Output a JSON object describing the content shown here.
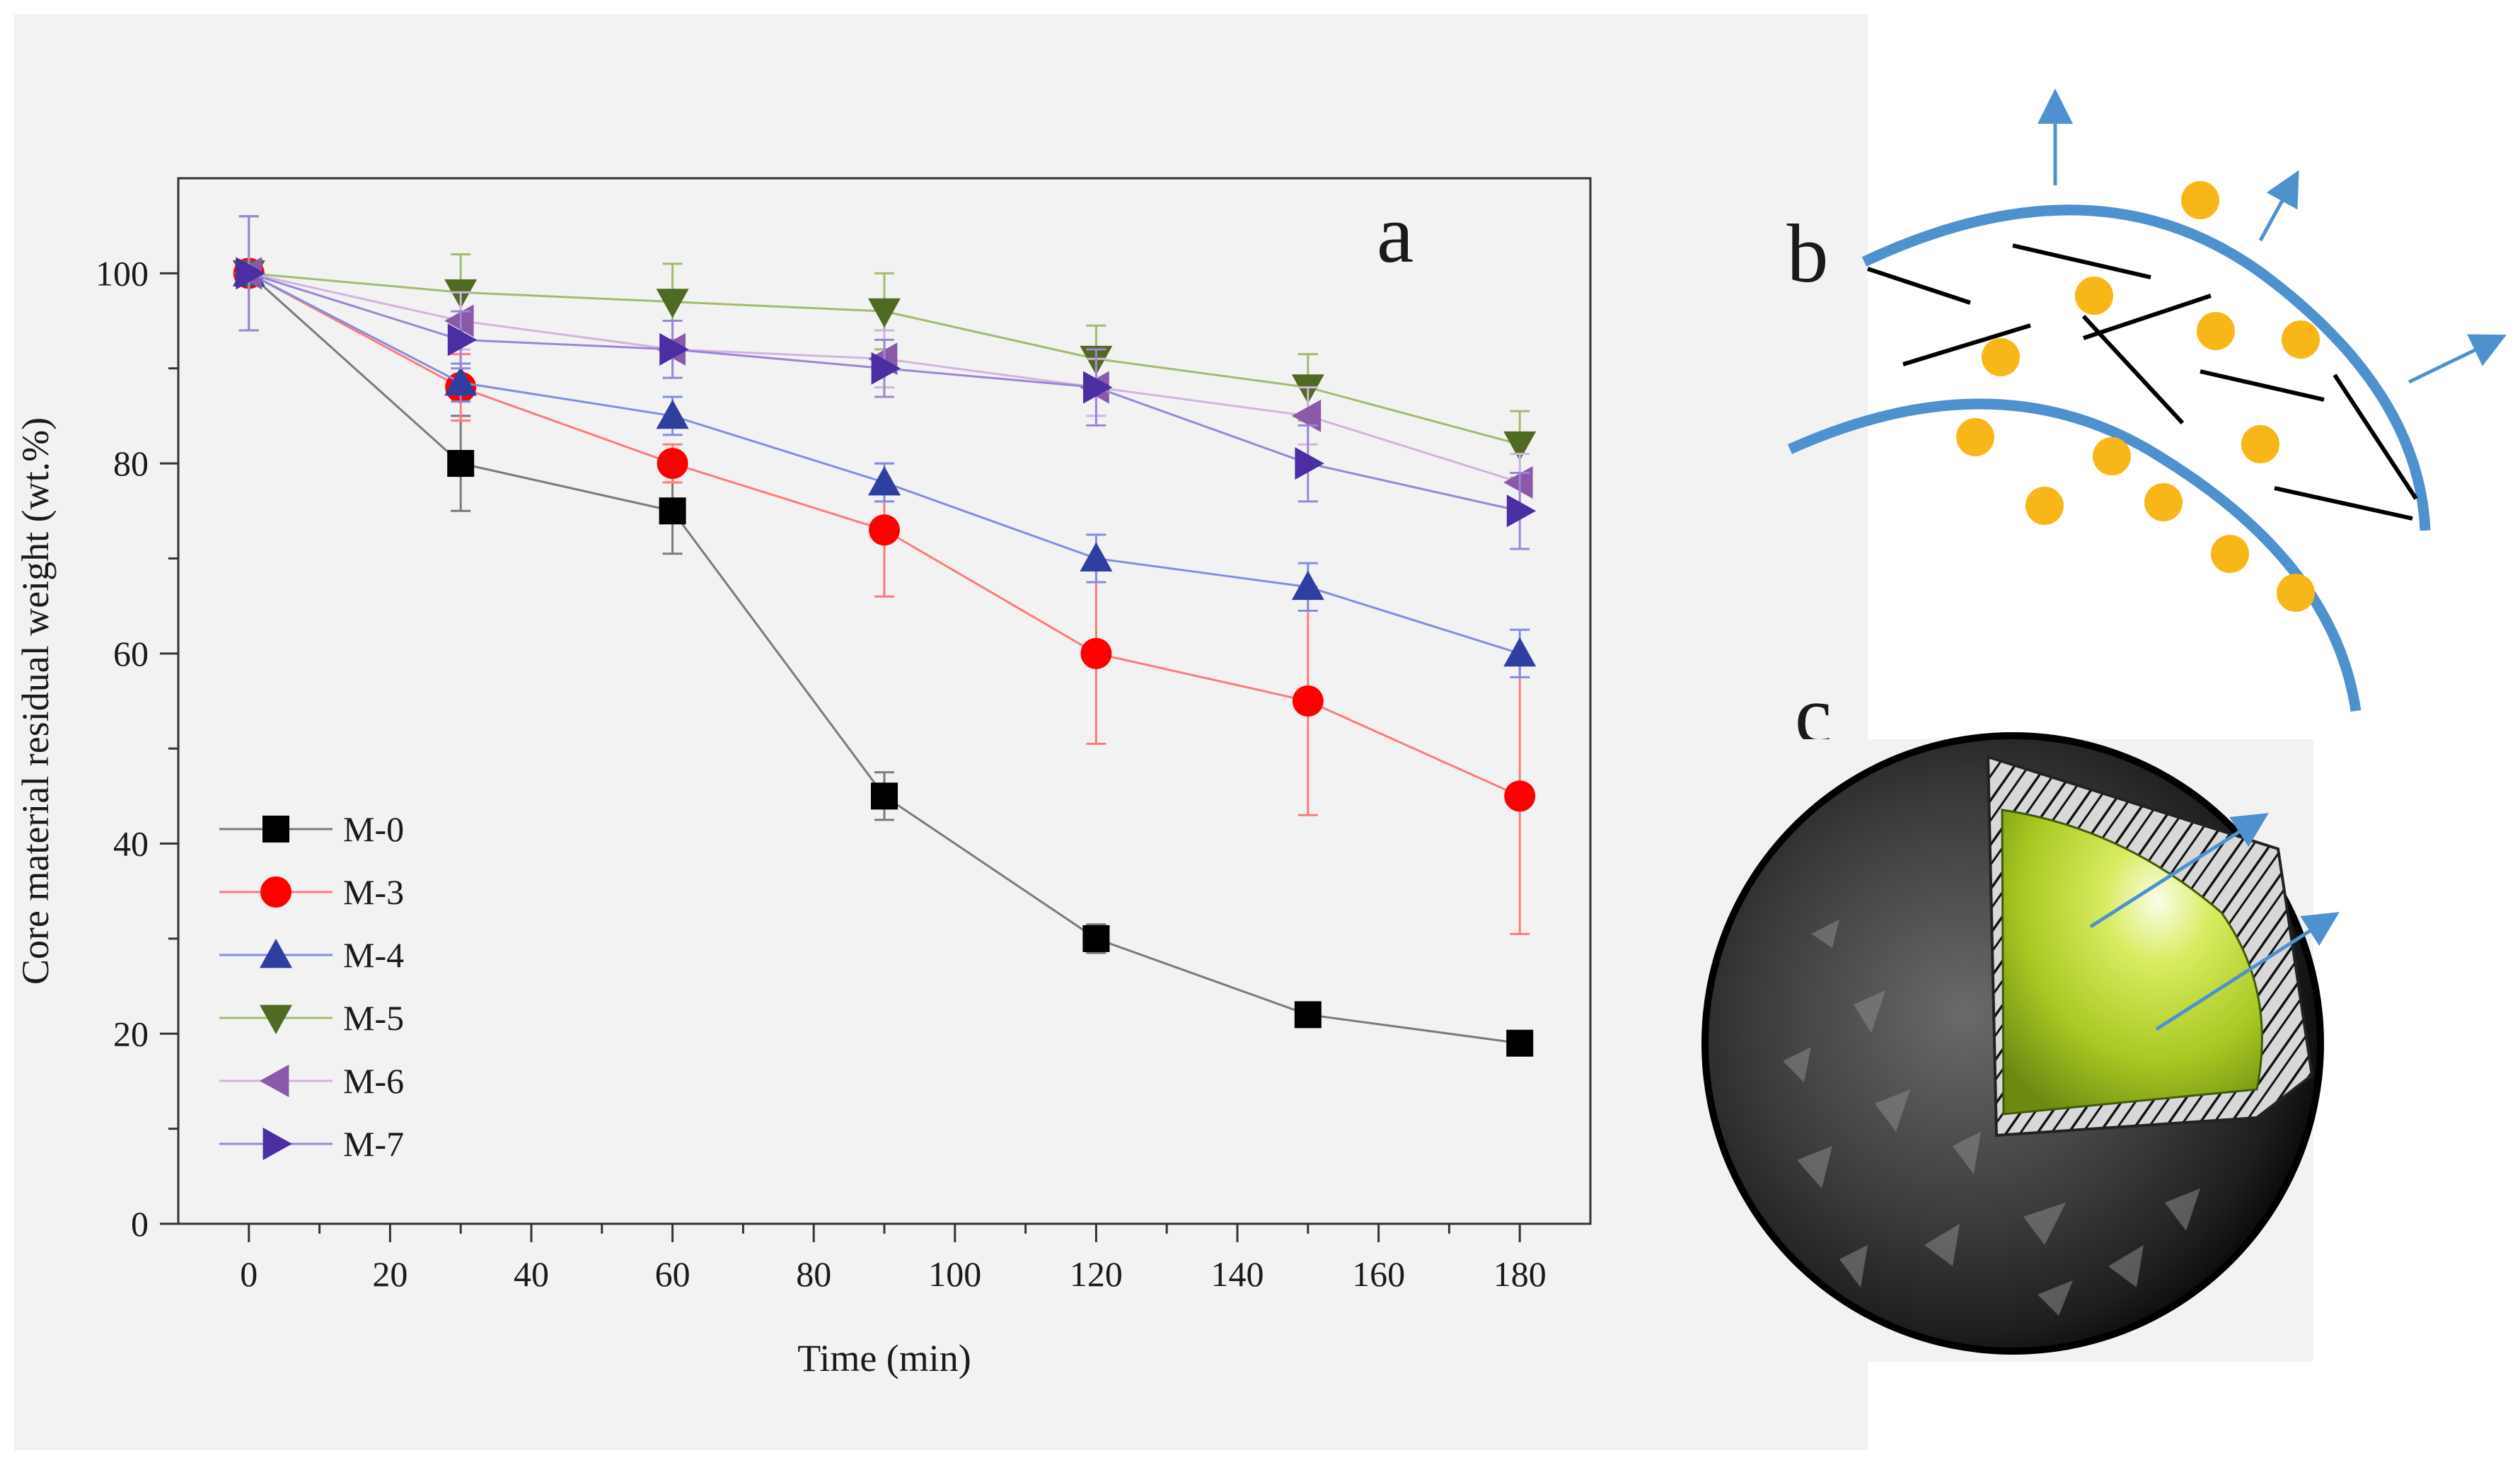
{
  "panels": {
    "a": "a",
    "b": "b",
    "c": "c"
  },
  "chart_data": {
    "type": "line",
    "xlabel": "Time (min)",
    "ylabel": "Core material residual weight (wt.%)",
    "xlim": [
      -10,
      190
    ],
    "ylim": [
      0,
      110
    ],
    "xticks": [
      0,
      20,
      40,
      60,
      80,
      100,
      120,
      140,
      160,
      180
    ],
    "yticks": [
      0,
      20,
      40,
      60,
      80,
      100
    ],
    "grid": false,
    "legend_position": "bottom-left",
    "x": [
      0,
      30,
      60,
      90,
      120,
      150,
      180
    ],
    "series": [
      {
        "name": "M-0",
        "marker": "square",
        "color": "#000000",
        "line_color": "#7a7a7a",
        "values": [
          100,
          80,
          75,
          45,
          30,
          22,
          19
        ],
        "errors": [
          6,
          5,
          4.5,
          2.5,
          1.5,
          0,
          0
        ]
      },
      {
        "name": "M-3",
        "marker": "circle",
        "color": "#ff0000",
        "line_color": "#ff7a7a",
        "values": [
          100,
          88,
          80,
          73,
          60,
          55,
          45
        ],
        "errors": [
          6,
          3.5,
          2,
          7,
          9.5,
          12,
          14.5
        ]
      },
      {
        "name": "M-4",
        "marker": "triangle-up",
        "color": "#2f3f9f",
        "line_color": "#7f8fdf",
        "values": [
          100,
          88.5,
          85,
          78,
          70,
          67,
          60
        ],
        "errors": [
          6,
          2,
          2,
          2,
          2.5,
          2.5,
          2.5
        ]
      },
      {
        "name": "M-5",
        "marker": "triangle-down",
        "color": "#4f6a22",
        "line_color": "#9ebd6e",
        "values": [
          100,
          98,
          97,
          96,
          91,
          88,
          82
        ],
        "errors": [
          6,
          4,
          4,
          4,
          3.5,
          3.5,
          3.5
        ]
      },
      {
        "name": "M-6",
        "marker": "triangle-left",
        "color": "#8a5aa8",
        "line_color": "#d3b3e0",
        "values": [
          100,
          95,
          92,
          91,
          88,
          85,
          78
        ],
        "errors": [
          6,
          3,
          3,
          3,
          3,
          3,
          3
        ]
      },
      {
        "name": "M-7",
        "marker": "triangle-right",
        "color": "#4b2ea1",
        "line_color": "#9a86d4",
        "values": [
          100,
          93,
          92,
          90,
          88,
          80,
          75
        ],
        "errors": [
          6,
          3,
          3,
          3,
          4,
          4,
          4
        ]
      }
    ]
  },
  "colors": {
    "arrow": "#4f91cf",
    "shell": "#4f91cf",
    "core_particle": "#f7b718",
    "fiber": "#000000",
    "core_green": "#b6d62a"
  }
}
